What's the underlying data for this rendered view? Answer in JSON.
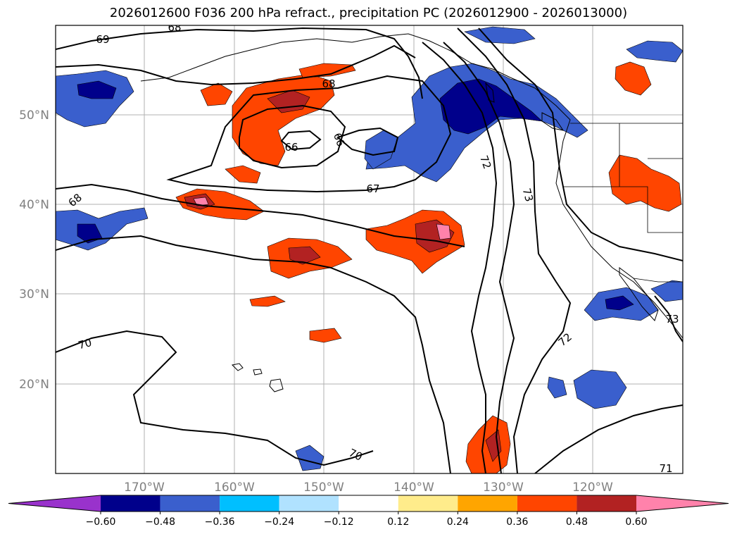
{
  "title": "2026012600 F036 200 hPa refract., precipitation PC (2026012900 - 2026013000)",
  "map": {
    "lat_labels": [
      "50°N",
      "40°N",
      "30°N",
      "20°N"
    ],
    "lon_labels": [
      "170°W",
      "160°W",
      "150°W",
      "140°W",
      "130°W",
      "120°W"
    ],
    "contour_labels": [
      "69",
      "68",
      "68",
      "66",
      "66",
      "67",
      "68",
      "70",
      "72",
      "73",
      "70",
      "71",
      "73",
      "72"
    ],
    "colors": {
      "coastline": "#000000",
      "grid": "#b0b0b0",
      "contour": "#000000"
    }
  },
  "colorbar": {
    "bins": [
      {
        "color": "#9932cc"
      },
      {
        "color": "#00008b"
      },
      {
        "color": "#3a5fcd"
      },
      {
        "color": "#00bfff"
      },
      {
        "color": "#b0e2ff"
      },
      {
        "color": "#ffffff"
      },
      {
        "color": "#ffec8b"
      },
      {
        "color": "#ffa500"
      },
      {
        "color": "#ff4500"
      },
      {
        "color": "#b22222"
      },
      {
        "color": "#ff82ab"
      }
    ],
    "ticks": [
      "−0.60",
      "−0.48",
      "−0.36",
      "−0.24",
      "−0.12",
      "0.12",
      "0.24",
      "0.36",
      "0.48",
      "0.60"
    ]
  }
}
